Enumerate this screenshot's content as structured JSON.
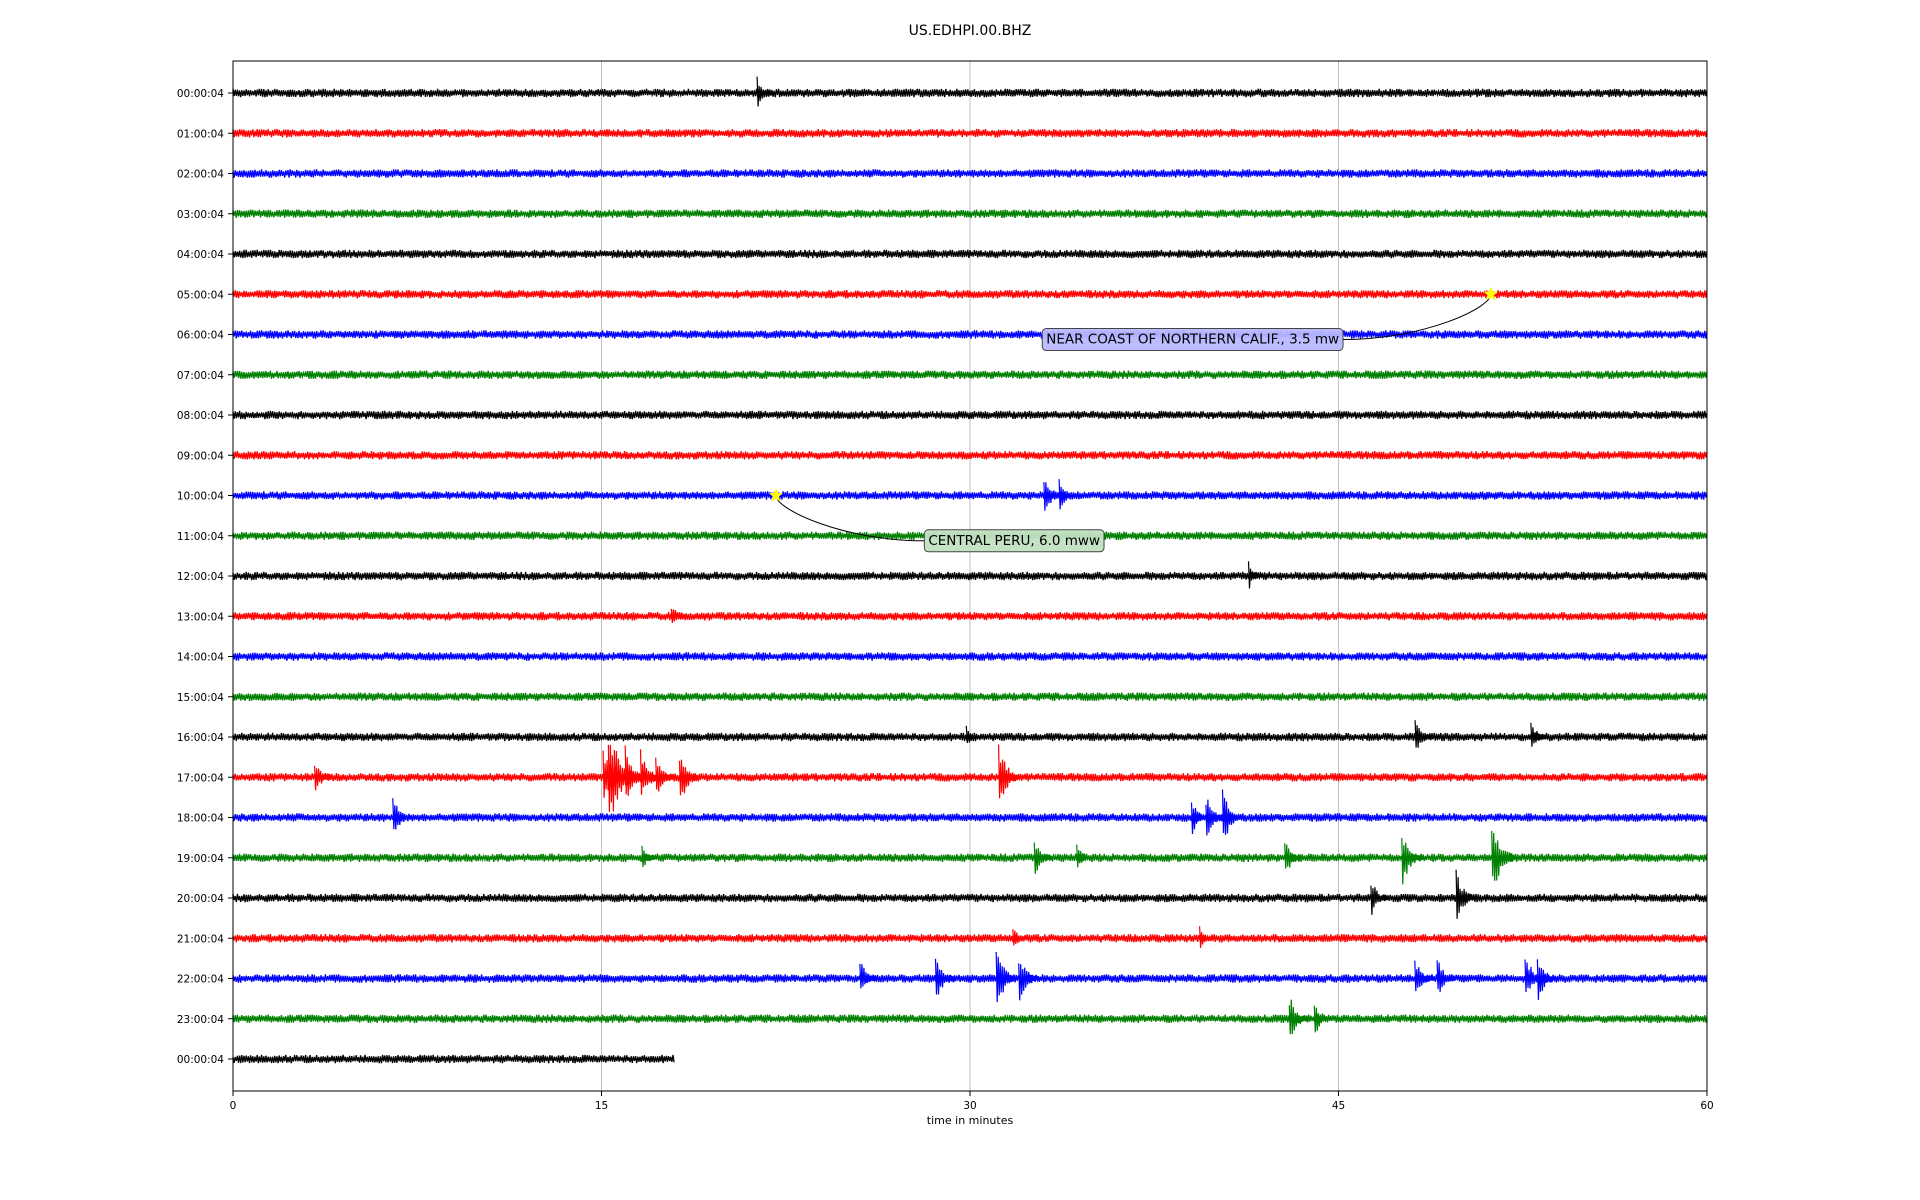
{
  "chart_data": {
    "type": "line",
    "title": "US.EDHPI.00.BHZ",
    "xlabel": "time in minutes",
    "ylabel": "",
    "xlim": [
      0,
      60
    ],
    "x_ticks": [
      "0",
      "15",
      "30",
      "45",
      "60"
    ],
    "grid": "vertical",
    "legend": "none",
    "row_labels": [
      "00:00:04",
      "01:00:04",
      "02:00:04",
      "03:00:04",
      "04:00:04",
      "05:00:04",
      "06:00:04",
      "07:00:04",
      "08:00:04",
      "09:00:04",
      "10:00:04",
      "11:00:04",
      "12:00:04",
      "13:00:04",
      "14:00:04",
      "15:00:04",
      "16:00:04",
      "17:00:04",
      "18:00:04",
      "19:00:04",
      "20:00:04",
      "21:00:04",
      "22:00:04",
      "23:00:04",
      "00:00:04"
    ],
    "row_colors": [
      "#000000",
      "#ff0000",
      "#0000ff",
      "#008000"
    ],
    "last_row_end_minute": 18,
    "spikes": [
      {
        "row": 0,
        "minute": 21.5,
        "amplitude": 1.3
      },
      {
        "row": 10,
        "minute": 33.2,
        "amplitude": 1.8
      },
      {
        "row": 10,
        "minute": 33.8,
        "amplitude": 1.4
      },
      {
        "row": 12,
        "minute": 41.5,
        "amplitude": 1.2
      },
      {
        "row": 13,
        "minute": 18.0,
        "amplitude": 1.1
      },
      {
        "row": 16,
        "minute": 30.0,
        "amplitude": 1.0
      },
      {
        "row": 16,
        "minute": 48.3,
        "amplitude": 1.6
      },
      {
        "row": 16,
        "minute": 53.0,
        "amplitude": 1.3
      },
      {
        "row": 17,
        "minute": 3.5,
        "amplitude": 1.5
      },
      {
        "row": 17,
        "minute": 15.3,
        "amplitude": 2.6
      },
      {
        "row": 17,
        "minute": 15.6,
        "amplitude": 4.3
      },
      {
        "row": 17,
        "minute": 16.2,
        "amplitude": 2.6
      },
      {
        "row": 17,
        "minute": 16.8,
        "amplitude": 2.2
      },
      {
        "row": 17,
        "minute": 17.4,
        "amplitude": 1.8
      },
      {
        "row": 18.0,
        "minute": 18.4,
        "amplitude": 0
      },
      {
        "row": 17,
        "minute": 18.4,
        "amplitude": 2.4
      },
      {
        "row": 17,
        "minute": 31.4,
        "amplitude": 2.6
      },
      {
        "row": 18,
        "minute": 6.7,
        "amplitude": 1.8
      },
      {
        "row": 18,
        "minute": 39.2,
        "amplitude": 1.6
      },
      {
        "row": 18,
        "minute": 39.8,
        "amplitude": 1.9
      },
      {
        "row": 18,
        "minute": 40.5,
        "amplitude": 2.4
      },
      {
        "row": 19,
        "minute": 16.8,
        "amplitude": 1.0
      },
      {
        "row": 19,
        "minute": 32.8,
        "amplitude": 1.6
      },
      {
        "row": 19,
        "minute": 34.5,
        "amplitude": 1.1
      },
      {
        "row": 19,
        "minute": 43.0,
        "amplitude": 1.7
      },
      {
        "row": 19,
        "minute": 47.8,
        "amplitude": 2.4
      },
      {
        "row": 19,
        "minute": 51.5,
        "amplitude": 3.2
      },
      {
        "row": 20,
        "minute": 46.5,
        "amplitude": 1.6
      },
      {
        "row": 20,
        "minute": 50.0,
        "amplitude": 2.2
      },
      {
        "row": 21,
        "minute": 31.9,
        "amplitude": 1.1
      },
      {
        "row": 21,
        "minute": 39.5,
        "amplitude": 1.0
      },
      {
        "row": 22,
        "minute": 25.7,
        "amplitude": 1.6
      },
      {
        "row": 22,
        "minute": 28.8,
        "amplitude": 2.0
      },
      {
        "row": 22,
        "minute": 31.3,
        "amplitude": 2.6
      },
      {
        "row": 22,
        "minute": 32.2,
        "amplitude": 2.3
      },
      {
        "row": 22,
        "minute": 48.3,
        "amplitude": 1.8
      },
      {
        "row": 22,
        "minute": 49.2,
        "amplitude": 1.7
      },
      {
        "row": 22,
        "minute": 52.8,
        "amplitude": 2.1
      },
      {
        "row": 22,
        "minute": 53.3,
        "amplitude": 2.0
      },
      {
        "row": 23,
        "minute": 43.2,
        "amplitude": 2.0
      },
      {
        "row": 23,
        "minute": 44.2,
        "amplitude": 1.6
      }
    ],
    "events": [
      {
        "label": "NEAR COAST OF NORTHERN CALIF., 3.5 mw",
        "row": 5,
        "minute": 51.2,
        "label_minute": 32.9,
        "label_row": 6.1,
        "box_color": "#b8b8ff"
      },
      {
        "label": "CENTRAL PERU, 6.0 mww",
        "row": 10,
        "minute": 22.1,
        "label_minute": 28.1,
        "label_row": 11.1,
        "box_color": "#c2e0c2"
      }
    ],
    "marker_color": "#ffff00"
  }
}
